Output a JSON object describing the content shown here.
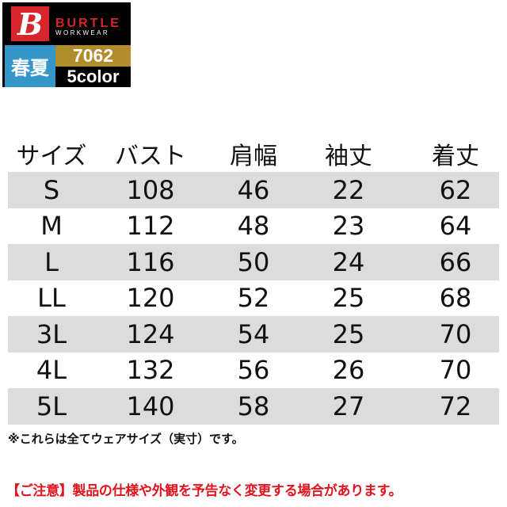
{
  "logo": {
    "brand": "BURTLE",
    "subbrand": "WORKWEAR",
    "mark": "B",
    "season": "春夏",
    "product_code": "7062",
    "colors": "5color",
    "brand_colors": {
      "red": "#d7262b",
      "blue": "#3596c9",
      "gold": "#b18c2a"
    }
  },
  "table": {
    "headers": [
      "サイズ",
      "バスト",
      "肩幅",
      "袖丈",
      "着丈"
    ],
    "rows": [
      [
        "S",
        "108",
        "46",
        "22",
        "62"
      ],
      [
        "M",
        "112",
        "48",
        "23",
        "64"
      ],
      [
        "L",
        "116",
        "50",
        "24",
        "66"
      ],
      [
        "LL",
        "120",
        "52",
        "25",
        "68"
      ],
      [
        "3L",
        "124",
        "54",
        "25",
        "70"
      ],
      [
        "4L",
        "132",
        "56",
        "26",
        "70"
      ],
      [
        "5L",
        "140",
        "58",
        "27",
        "72"
      ]
    ]
  },
  "note": "※これらは全てウェアサイズ（実寸）です。",
  "caution": "【ご注意】製品の仕様や外観を予告なく変更する場合があります。",
  "caution_color": "#e0141e"
}
